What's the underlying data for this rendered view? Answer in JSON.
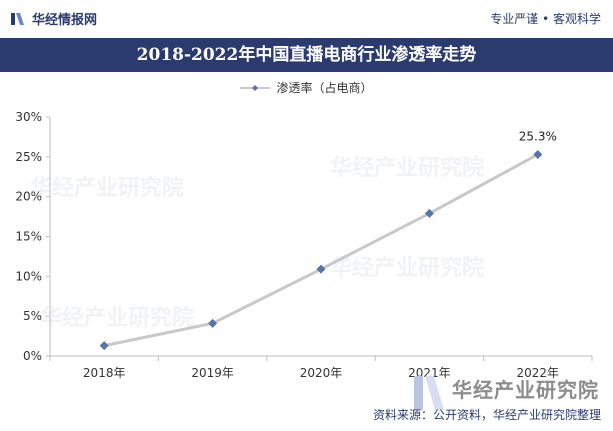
{
  "header": {
    "brand": "华经情报网",
    "slogan": "专业严谨 • 客观科学"
  },
  "colors": {
    "navy": "#2b3b6e",
    "line": "#c8c8cc",
    "marker": "#5873a8"
  },
  "source": "资料来源：公开资料，华经产业研究院整理",
  "watermark": {
    "text": "华经产业研究院",
    "url": "www.huaon.com"
  },
  "chart_data": {
    "type": "line",
    "title": "2018-2022年中国直播电商行业渗透率走势",
    "xlabel": "",
    "ylabel": "",
    "categories": [
      "2018年",
      "2019年",
      "2020年",
      "2021年",
      "2022年"
    ],
    "series": [
      {
        "name": "渗透率（占电商）",
        "values": [
          1.3,
          4.1,
          10.9,
          17.9,
          25.3
        ]
      }
    ],
    "ylim": [
      0,
      30
    ],
    "yticks": [
      "0%",
      "5%",
      "10%",
      "15%",
      "20%",
      "25%",
      "30%"
    ],
    "data_labels": [
      {
        "index": 4,
        "text": "25.3%"
      }
    ],
    "legend_position": "top-center",
    "grid": false
  }
}
